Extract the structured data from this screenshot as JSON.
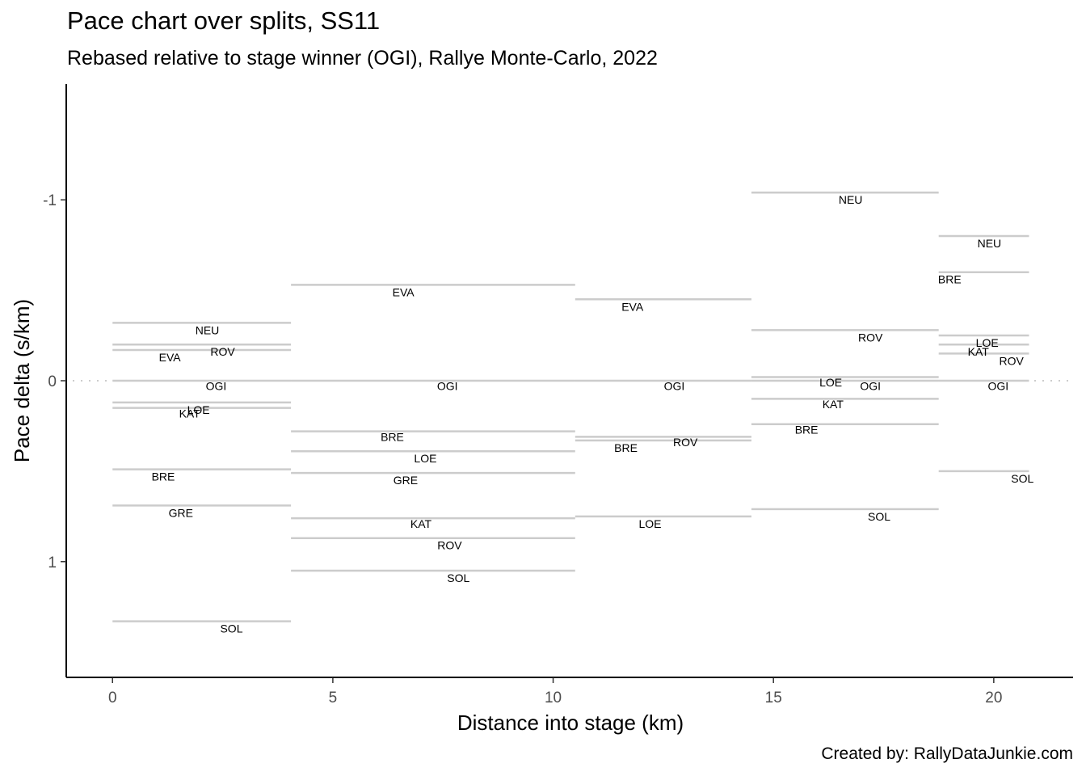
{
  "title": "Pace chart over splits, SS11",
  "subtitle": "Rebased relative to stage winner (OGI), Rallye Monte-Carlo, 2022",
  "credit": "Created by: RallyDataJunkie.com",
  "chart_data": {
    "type": "line",
    "title": "Pace chart over splits, SS11",
    "subtitle": "Rebased relative to stage winner (OGI), Rallye Monte-Carlo, 2022",
    "xlabel": "Distance into stage (km)",
    "ylabel": "Pace delta (s/km)",
    "xlim": [
      -1.05,
      21.8
    ],
    "ylim": [
      1.64,
      -1.64
    ],
    "y_reversed": true,
    "xticks": [
      0,
      5,
      10,
      15,
      20
    ],
    "yticks": [
      -1,
      0,
      1
    ],
    "ytick_labels": [
      "-1",
      "0",
      "1"
    ],
    "grid": false,
    "reference_line": {
      "y": 0,
      "style": "dotted"
    },
    "splits": [
      [
        0,
        4.05
      ],
      [
        4.05,
        10.5
      ],
      [
        10.5,
        14.5
      ],
      [
        14.5,
        18.75
      ],
      [
        18.75,
        20.8
      ]
    ],
    "series": [
      {
        "name": "OGI",
        "values": [
          0,
          0,
          0,
          0,
          0
        ]
      },
      {
        "name": "NEU",
        "values": [
          -0.32,
          null,
          null,
          -1.04,
          -0.8
        ]
      },
      {
        "name": "ROV",
        "values": [
          -0.17,
          0.87,
          0.31,
          -0.28,
          -0.15
        ]
      },
      {
        "name": "EVA",
        "values": [
          -0.2,
          -0.53,
          -0.45,
          null,
          null
        ]
      },
      {
        "name": "LOE",
        "values": [
          0.12,
          0.39,
          0.75,
          -0.02,
          -0.25
        ]
      },
      {
        "name": "KAT",
        "values": [
          0.15,
          0.76,
          null,
          0.1,
          -0.2
        ]
      },
      {
        "name": "BRE",
        "values": [
          0.49,
          0.28,
          0.33,
          0.24,
          -0.6
        ]
      },
      {
        "name": "GRE",
        "values": [
          0.69,
          0.51,
          null,
          null,
          null
        ]
      },
      {
        "name": "SOL",
        "values": [
          1.33,
          1.05,
          null,
          0.71,
          0.5
        ]
      }
    ],
    "point_labels": [
      {
        "text": "NEU",
        "series": "NEU",
        "split": 0,
        "x": 2.15,
        "y": -0.28
      },
      {
        "text": "ROV",
        "series": "ROV",
        "split": 0,
        "x": 2.5,
        "y": -0.16
      },
      {
        "text": "EVA",
        "series": "EVA",
        "split": 0,
        "x": 1.3,
        "y": -0.13
      },
      {
        "text": "OGI",
        "series": "OGI",
        "split": 0,
        "x": 2.35,
        "y": 0.03
      },
      {
        "text": "LOE",
        "series": "LOE",
        "split": 0,
        "x": 1.95,
        "y": 0.16
      },
      {
        "text": "KAT",
        "series": "KAT",
        "split": 0,
        "x": 1.75,
        "y": 0.18
      },
      {
        "text": "BRE",
        "series": "BRE",
        "split": 0,
        "x": 1.15,
        "y": 0.53
      },
      {
        "text": "GRE",
        "series": "GRE",
        "split": 0,
        "x": 1.55,
        "y": 0.73
      },
      {
        "text": "SOL",
        "series": "SOL",
        "split": 0,
        "x": 2.7,
        "y": 1.37
      },
      {
        "text": "EVA",
        "series": "EVA",
        "split": 1,
        "x": 6.6,
        "y": -0.49
      },
      {
        "text": "OGI",
        "series": "OGI",
        "split": 1,
        "x": 7.6,
        "y": 0.03
      },
      {
        "text": "BRE",
        "series": "BRE",
        "split": 1,
        "x": 6.35,
        "y": 0.31
      },
      {
        "text": "LOE",
        "series": "LOE",
        "split": 1,
        "x": 7.1,
        "y": 0.43
      },
      {
        "text": "GRE",
        "series": "GRE",
        "split": 1,
        "x": 6.65,
        "y": 0.55
      },
      {
        "text": "KAT",
        "series": "KAT",
        "split": 1,
        "x": 7.0,
        "y": 0.79
      },
      {
        "text": "ROV",
        "series": "ROV",
        "split": 1,
        "x": 7.65,
        "y": 0.91
      },
      {
        "text": "SOL",
        "series": "SOL",
        "split": 1,
        "x": 7.85,
        "y": 1.09
      },
      {
        "text": "EVA",
        "series": "EVA",
        "split": 2,
        "x": 11.8,
        "y": -0.41
      },
      {
        "text": "OGI",
        "series": "OGI",
        "split": 2,
        "x": 12.75,
        "y": 0.03
      },
      {
        "text": "BRE",
        "series": "BRE",
        "split": 2,
        "x": 11.65,
        "y": 0.37
      },
      {
        "text": "ROV",
        "series": "ROV",
        "split": 2,
        "x": 13.0,
        "y": 0.34
      },
      {
        "text": "LOE",
        "series": "LOE",
        "split": 2,
        "x": 12.2,
        "y": 0.79
      },
      {
        "text": "NEU",
        "series": "NEU",
        "split": 3,
        "x": 16.75,
        "y": -1.0
      },
      {
        "text": "ROV",
        "series": "ROV",
        "split": 3,
        "x": 17.2,
        "y": -0.24
      },
      {
        "text": "LOE",
        "series": "LOE",
        "split": 3,
        "x": 16.3,
        "y": 0.01
      },
      {
        "text": "OGI",
        "series": "OGI",
        "split": 3,
        "x": 17.2,
        "y": 0.03
      },
      {
        "text": "KAT",
        "series": "KAT",
        "split": 3,
        "x": 16.35,
        "y": 0.13
      },
      {
        "text": "BRE",
        "series": "BRE",
        "split": 3,
        "x": 15.75,
        "y": 0.27
      },
      {
        "text": "SOL",
        "series": "SOL",
        "split": 3,
        "x": 17.4,
        "y": 0.75
      },
      {
        "text": "NEU",
        "series": "NEU",
        "split": 4,
        "x": 19.9,
        "y": -0.76
      },
      {
        "text": "BRE",
        "series": "BRE",
        "split": 4,
        "x": 19.0,
        "y": -0.56
      },
      {
        "text": "LOE",
        "series": "LOE",
        "split": 4,
        "x": 19.85,
        "y": -0.21
      },
      {
        "text": "KAT",
        "series": "KAT",
        "split": 4,
        "x": 19.65,
        "y": -0.16
      },
      {
        "text": "ROV",
        "series": "ROV",
        "split": 4,
        "x": 20.4,
        "y": -0.11
      },
      {
        "text": "OGI",
        "series": "OGI",
        "split": 4,
        "x": 20.1,
        "y": 0.03
      },
      {
        "text": "SOL",
        "series": "SOL",
        "split": 4,
        "x": 20.65,
        "y": 0.54
      }
    ]
  }
}
